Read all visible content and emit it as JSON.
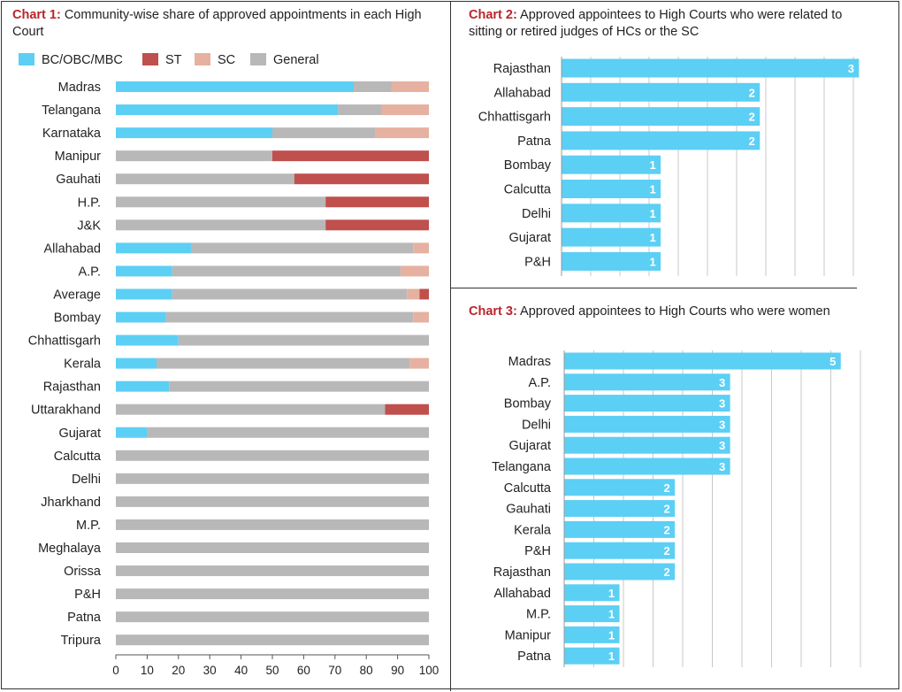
{
  "colors": {
    "bc": "#5ccff5",
    "st": "#c0504d",
    "sc": "#e6b1a0",
    "general": "#b8b8b8",
    "bar": "#5ccff5",
    "title_label": "#b8262b"
  },
  "chart1": {
    "label": "Chart 1:",
    "title": "Community-wise share of approved appointments in each High Court",
    "legend": [
      "BC/OBC/MBC",
      "ST",
      "SC",
      "General"
    ]
  },
  "chart2": {
    "label": "Chart 2:",
    "title": "Approved appointees to High Courts who were related to sitting or retired judges of HCs or the SC"
  },
  "chart3": {
    "label": "Chart 3:",
    "title": "Approved appointees to High Courts who were women"
  },
  "chart_data": [
    {
      "type": "bar",
      "orientation": "horizontal",
      "stacked": true,
      "title": "Community-wise share of approved appointments in each High Court",
      "categories": [
        "Madras",
        "Telangana",
        "Karnataka",
        "Manipur",
        "Gauhati",
        "H.P.",
        "J&K",
        "Allahabad",
        "A.P.",
        "Average",
        "Bombay",
        "Chhattisgarh",
        "Kerala",
        "Rajasthan",
        "Uttarakhand",
        "Gujarat",
        "Calcutta",
        "Delhi",
        "Jharkhand",
        "M.P.",
        "Meghalaya",
        "Orissa",
        "P&H",
        "Patna",
        "Tripura"
      ],
      "series": [
        {
          "name": "BC/OBC/MBC",
          "values": [
            76,
            71,
            50,
            0,
            0,
            0,
            0,
            24,
            18,
            18,
            16,
            20,
            13,
            17,
            0,
            10,
            0,
            0,
            0,
            0,
            0,
            0,
            0,
            0,
            0
          ]
        },
        {
          "name": "General",
          "values": [
            12,
            14,
            33,
            50,
            57,
            67,
            67,
            71,
            73,
            75,
            79,
            80,
            81,
            83,
            86,
            90,
            100,
            100,
            100,
            100,
            100,
            100,
            100,
            100,
            100
          ]
        },
        {
          "name": "SC",
          "values": [
            12,
            15,
            17,
            0,
            0,
            0,
            0,
            5,
            9,
            4,
            5,
            0,
            6,
            0,
            0,
            0,
            0,
            0,
            0,
            0,
            0,
            0,
            0,
            0,
            0
          ]
        },
        {
          "name": "ST",
          "values": [
            0,
            0,
            0,
            50,
            43,
            33,
            33,
            0,
            0,
            3,
            0,
            0,
            0,
            0,
            14,
            0,
            0,
            0,
            0,
            0,
            0,
            0,
            0,
            0,
            0
          ]
        }
      ],
      "xlim": [
        0,
        100
      ],
      "xticks": [
        0,
        10,
        20,
        30,
        40,
        50,
        60,
        70,
        80,
        90,
        100
      ],
      "legend": "top-left",
      "grid": false
    },
    {
      "type": "bar",
      "orientation": "horizontal",
      "title": "Approved appointees to High Courts who were related to sitting or retired judges of HCs or the SC",
      "categories": [
        "Rajasthan",
        "Allahabad",
        "Chhattisgarh",
        "Patna",
        "Bombay",
        "Calcutta",
        "Delhi",
        "Gujarat",
        "P&H"
      ],
      "values": [
        3,
        2,
        2,
        2,
        1,
        1,
        1,
        1,
        1
      ],
      "xlim": [
        0,
        3.3
      ],
      "grid": true,
      "data_labels": true
    },
    {
      "type": "bar",
      "orientation": "horizontal",
      "title": "Approved appointees to High Courts who were women",
      "categories": [
        "Madras",
        "A.P.",
        "Bombay",
        "Delhi",
        "Gujarat",
        "Telangana",
        "Calcutta",
        "Gauhati",
        "Kerala",
        "P&H",
        "Rajasthan",
        "Allahabad",
        "M.P.",
        "Manipur",
        "Patna"
      ],
      "values": [
        5,
        3,
        3,
        3,
        3,
        3,
        2,
        2,
        2,
        2,
        2,
        1,
        1,
        1,
        1
      ],
      "xlim": [
        0,
        5.1
      ],
      "grid": true,
      "data_labels": true
    }
  ]
}
